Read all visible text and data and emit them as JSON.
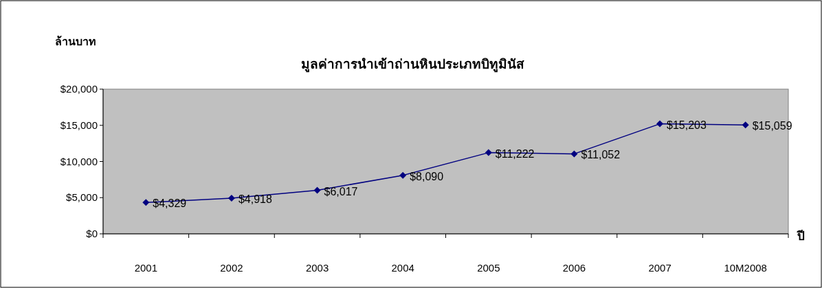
{
  "chart_data": {
    "type": "line",
    "title": "มูลค่าการนำเข้าถ่านหินประเภทบิทูมินัส",
    "ylabel": "ล้านบาท",
    "xlabel": "ปี",
    "categories": [
      "2001",
      "2002",
      "2003",
      "2004",
      "2005",
      "2006",
      "2007",
      "10M2008"
    ],
    "values": [
      4329,
      4918,
      6017,
      8090,
      11222,
      11052,
      15203,
      15059
    ],
    "value_labels": [
      "$4,329",
      "$4,918",
      "$6,017",
      "$8,090",
      "$11,222",
      "$11,052",
      "$15,203",
      "$15,059"
    ],
    "color": "#000080",
    "marker": "diamond",
    "line_style": "solid",
    "ylim": [
      0,
      20000
    ],
    "yticks": [
      {
        "value": 0,
        "label": "$0"
      },
      {
        "value": 5000,
        "label": "$5,000"
      },
      {
        "value": 10000,
        "label": "$10,000"
      },
      {
        "value": 15000,
        "label": "$15,000"
      },
      {
        "value": 20000,
        "label": "$20,000"
      }
    ]
  }
}
